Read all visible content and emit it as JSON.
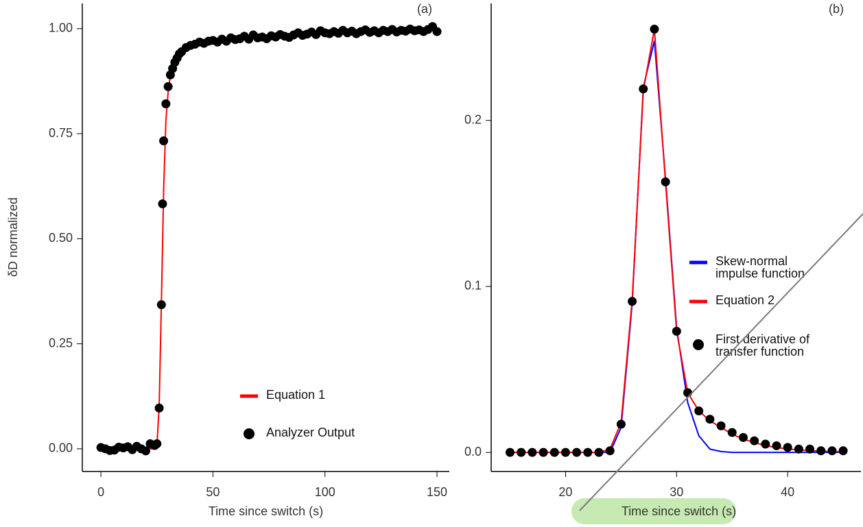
{
  "chart_data": [
    {
      "type": "line",
      "panel_label": "(a)",
      "x_label": "Time since switch (s)",
      "y_label": "δD normalized",
      "xlim": [
        -8.3,
        155.5
      ],
      "ylim": [
        -0.054,
        1.06
      ],
      "xticks": [
        0,
        50,
        100,
        150
      ],
      "yticks": [
        {
          "value": 0,
          "label": "0.00"
        },
        0.25,
        {
          "value": 0.5,
          "label": "0.50"
        },
        0.75,
        {
          "value": 1,
          "label": "1.00"
        }
      ],
      "legend": "lower center",
      "series": [
        {
          "name": "Equation 1",
          "type": "line",
          "color": "#ff0000",
          "x": [
            0,
            24,
            25,
            26,
            27,
            28,
            29,
            30,
            31,
            32,
            34,
            36,
            40,
            50,
            75,
            100,
            150
          ],
          "values": [
            0,
            0,
            0.01,
            0.1,
            0.35,
            0.62,
            0.78,
            0.85,
            0.89,
            0.91,
            0.935,
            0.948,
            0.96,
            0.97,
            0.98,
            0.99,
            0.997
          ]
        },
        {
          "name": "Analyzer Output",
          "type": "scatter",
          "color": "#000000",
          "x": [
            0,
            2,
            4,
            6,
            8,
            10,
            12,
            14,
            16,
            18,
            20,
            22,
            24,
            25,
            26,
            27,
            27.5,
            28,
            29,
            30,
            31,
            32,
            33,
            34,
            35,
            36,
            38,
            40,
            42,
            44,
            46,
            48,
            50,
            52,
            54,
            56,
            58,
            60,
            62,
            64,
            66,
            68,
            70,
            72,
            74,
            76,
            78,
            80,
            82,
            84,
            86,
            88,
            90,
            92,
            94,
            96,
            98,
            100,
            102,
            104,
            106,
            108,
            110,
            112,
            114,
            116,
            118,
            120,
            122,
            124,
            126,
            128,
            130,
            132,
            134,
            136,
            138,
            140,
            142,
            144,
            146,
            148,
            150
          ],
          "values": [
            0.003,
            0.0,
            -0.004,
            -0.003,
            0.004,
            0.002,
            0.005,
            -0.002,
            0.006,
            0.0,
            -0.005,
            0.012,
            0.008,
            0.012,
            0.097,
            0.343,
            0.583,
            0.733,
            0.821,
            0.862,
            0.89,
            0.905,
            0.92,
            0.93,
            0.94,
            0.945,
            0.955,
            0.96,
            0.963,
            0.968,
            0.965,
            0.97,
            0.972,
            0.968,
            0.975,
            0.97,
            0.978,
            0.974,
            0.976,
            0.982,
            0.975,
            0.985,
            0.978,
            0.98,
            0.976,
            0.983,
            0.98,
            0.986,
            0.982,
            0.979,
            0.985,
            0.99,
            0.984,
            0.987,
            0.992,
            0.986,
            0.995,
            0.99,
            0.988,
            0.993,
            0.989,
            0.996,
            0.99,
            0.994,
            0.988,
            0.993,
            0.997,
            0.991,
            0.995,
            0.99,
            0.996,
            0.993,
            0.998,
            0.992,
            0.996,
            0.994,
            0.999,
            0.995,
            0.997,
            0.993,
            0.998,
            1.005,
            0.993
          ]
        }
      ]
    },
    {
      "type": "line",
      "panel_label": "(b)",
      "x_label": "Time since switch (s)",
      "xlim": [
        13.3,
        46.6
      ],
      "ylim": [
        -0.0115,
        0.2705
      ],
      "xticks": [
        20,
        30,
        40
      ],
      "yticks": [
        {
          "value": 0,
          "label": "0.0"
        },
        0.1,
        0.2
      ],
      "legend": "center right",
      "series": [
        {
          "name": "Skew-normal impulse function",
          "type": "line",
          "color": "#0000ff",
          "x": [
            15,
            16,
            17,
            18,
            19,
            20,
            21,
            22,
            23,
            24,
            25,
            26,
            27,
            28,
            29,
            30,
            31,
            32,
            33,
            34,
            35,
            36,
            37,
            38,
            39,
            40,
            41,
            42,
            43,
            44,
            45
          ],
          "values": [
            0,
            0,
            0,
            0,
            0,
            0,
            0,
            0,
            0,
            0,
            0.015,
            0.09,
            0.22,
            0.248,
            0.165,
            0.075,
            0.03,
            0.01,
            0.002,
            0.0005,
            0,
            0,
            0,
            0,
            0,
            0,
            0,
            0,
            0,
            0,
            0
          ]
        },
        {
          "name": "Equation 2",
          "type": "line",
          "color": "#ff0000",
          "x": [
            15,
            16,
            17,
            18,
            19,
            20,
            21,
            22,
            23,
            24,
            25,
            26,
            27,
            28,
            29,
            30,
            31,
            32,
            33,
            34,
            35,
            36,
            37,
            38,
            39,
            40,
            41,
            42,
            43,
            44,
            45
          ],
          "values": [
            0,
            0,
            0,
            0,
            0,
            0,
            0,
            0,
            0,
            0.002,
            0.018,
            0.092,
            0.218,
            0.255,
            0.163,
            0.073,
            0.036,
            0.025,
            0.019,
            0.015,
            0.011,
            0.008,
            0.006,
            0.004,
            0.003,
            0.002,
            0.0015,
            0.001,
            0.0008,
            0.0005,
            0.0003
          ]
        },
        {
          "name": "First derivative of transfer function",
          "type": "scatter",
          "color": "#000000",
          "x": [
            15,
            16,
            17,
            18,
            19,
            20,
            21,
            22,
            23,
            24,
            25,
            26,
            27,
            28,
            29,
            30,
            31,
            32,
            33,
            34,
            35,
            36,
            37,
            38,
            39,
            40,
            41,
            42,
            43,
            44,
            45
          ],
          "values": [
            0,
            0,
            0,
            0,
            0,
            0,
            0,
            0,
            0,
            0.001,
            0.017,
            0.091,
            0.219,
            0.255,
            0.163,
            0.073,
            0.036,
            0.025,
            0.02,
            0.016,
            0.012,
            0.009,
            0.007,
            0.005,
            0.004,
            0.003,
            0.002,
            0.002,
            0.001,
            0.001,
            0.001
          ]
        }
      ]
    }
  ]
}
